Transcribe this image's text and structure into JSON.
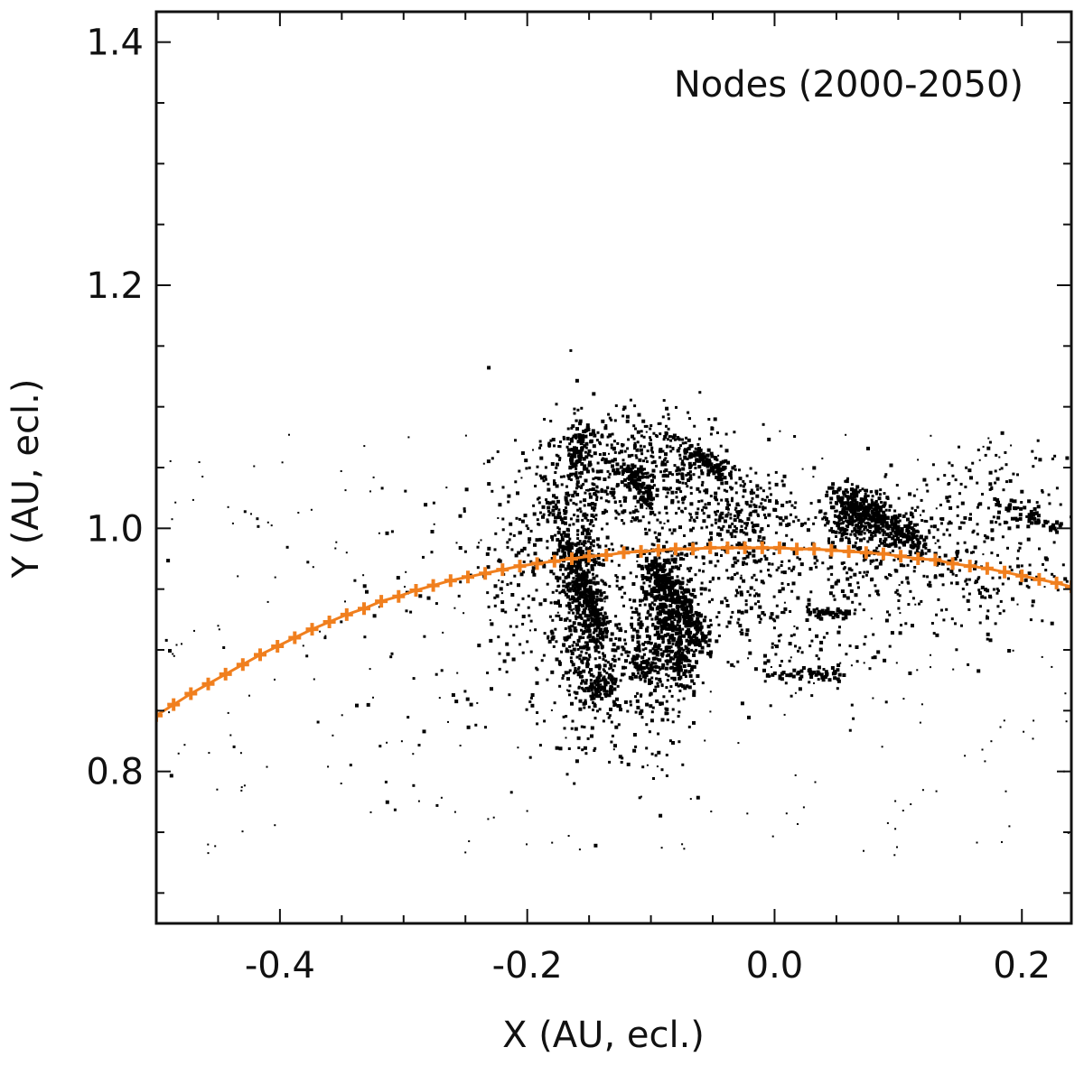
{
  "chart_data": {
    "type": "scatter",
    "title": "",
    "annotation": "Nodes (2000-2050)",
    "xlabel": "X (AU, ecl.)",
    "ylabel": "Y (AU, ecl.)",
    "xlim": [
      -0.5,
      0.24
    ],
    "ylim": [
      0.675,
      1.425
    ],
    "x_ticks": [
      -0.4,
      -0.2,
      0.0,
      0.2
    ],
    "x_tick_labels": [
      "-0.4",
      "-0.2",
      "0.0",
      "0.2"
    ],
    "x_minor_ticks": [
      -0.45,
      -0.35,
      -0.3,
      -0.25,
      -0.15,
      -0.1,
      -0.05,
      0.05,
      0.1,
      0.15
    ],
    "y_ticks": [
      0.8,
      1.0,
      1.2,
      1.4
    ],
    "y_tick_labels": [
      "0.8",
      "1.0",
      "1.2",
      "1.4"
    ],
    "y_minor_ticks": [
      0.7,
      0.75,
      0.85,
      0.9,
      0.95,
      1.05,
      1.1,
      1.15,
      1.25,
      1.3,
      1.35
    ],
    "grid": false,
    "orbit_color": "#f07f1e",
    "node_color": "#000000",
    "series": [
      {
        "kind": "line-with-plus-markers",
        "x": [
          -0.5,
          -0.486,
          -0.472,
          -0.458,
          -0.444,
          -0.43,
          -0.416,
          -0.402,
          -0.388,
          -0.374,
          -0.36,
          -0.346,
          -0.332,
          -0.318,
          -0.304,
          -0.29,
          -0.276,
          -0.262,
          -0.248,
          -0.234,
          -0.22,
          -0.206,
          -0.192,
          -0.178,
          -0.164,
          -0.15,
          -0.136,
          -0.122,
          -0.108,
          -0.094,
          -0.08,
          -0.066,
          -0.052,
          -0.038,
          -0.024,
          -0.01,
          0.004,
          0.018,
          0.032,
          0.046,
          0.06,
          0.074,
          0.088,
          0.102,
          0.116,
          0.13,
          0.144,
          0.158,
          0.172,
          0.186,
          0.2,
          0.214,
          0.228,
          0.24
        ],
        "y": [
          0.846,
          0.855,
          0.864,
          0.872,
          0.88,
          0.888,
          0.896,
          0.903,
          0.91,
          0.917,
          0.923,
          0.929,
          0.934,
          0.94,
          0.944,
          0.949,
          0.953,
          0.957,
          0.96,
          0.963,
          0.966,
          0.969,
          0.971,
          0.973,
          0.975,
          0.977,
          0.978,
          0.98,
          0.981,
          0.982,
          0.983,
          0.983,
          0.984,
          0.984,
          0.984,
          0.984,
          0.984,
          0.983,
          0.983,
          0.982,
          0.981,
          0.98,
          0.979,
          0.977,
          0.975,
          0.974,
          0.971,
          0.969,
          0.967,
          0.964,
          0.961,
          0.958,
          0.955,
          0.952
        ]
      }
    ],
    "node_clusters": [
      {
        "x": -0.155,
        "y": 0.94,
        "sx": 0.012,
        "sy": 0.05,
        "n": 420
      },
      {
        "x": -0.17,
        "y": 1.02,
        "sx": 0.02,
        "sy": 0.04,
        "n": 220
      },
      {
        "x": -0.09,
        "y": 0.925,
        "sx": 0.015,
        "sy": 0.05,
        "n": 450
      },
      {
        "x": -0.13,
        "y": 1.05,
        "sx": 0.02,
        "sy": 0.025,
        "n": 200
      },
      {
        "x": -0.08,
        "y": 1.055,
        "sx": 0.02,
        "sy": 0.02,
        "n": 200
      },
      {
        "x": -0.03,
        "y": 1.015,
        "sx": 0.025,
        "sy": 0.02,
        "n": 220
      },
      {
        "x": -0.02,
        "y": 0.96,
        "sx": 0.03,
        "sy": 0.035,
        "n": 200
      },
      {
        "x": 0.065,
        "y": 1.01,
        "sx": 0.012,
        "sy": 0.012,
        "n": 280
      },
      {
        "x": 0.1,
        "y": 0.99,
        "sx": 0.03,
        "sy": 0.02,
        "n": 200
      },
      {
        "x": 0.17,
        "y": 0.97,
        "sx": 0.04,
        "sy": 0.03,
        "n": 200
      },
      {
        "x": 0.04,
        "y": 0.93,
        "sx": 0.05,
        "sy": 0.04,
        "n": 180
      },
      {
        "x": -0.135,
        "y": 0.88,
        "sx": 0.02,
        "sy": 0.03,
        "n": 150
      },
      {
        "x": -0.14,
        "y": 0.872,
        "sx": 0.006,
        "sy": 0.008,
        "n": 90
      },
      {
        "x": -0.105,
        "y": 0.888,
        "sx": 0.006,
        "sy": 0.01,
        "n": 80
      },
      {
        "x": -0.2,
        "y": 0.95,
        "sx": 0.025,
        "sy": 0.06,
        "n": 160
      },
      {
        "x": 0.16,
        "y": 1.03,
        "sx": 0.04,
        "sy": 0.02,
        "n": 80
      },
      {
        "x": -0.25,
        "y": 0.92,
        "sx": 0.1,
        "sy": 0.07,
        "n": 120
      }
    ],
    "node_streaks": [
      {
        "x1": -0.17,
        "y1": 0.99,
        "x2": -0.14,
        "y2": 0.91,
        "w": 0.006,
        "n": 240
      },
      {
        "x1": -0.1,
        "y1": 0.975,
        "x2": -0.07,
        "y2": 0.875,
        "w": 0.006,
        "n": 260
      },
      {
        "x1": -0.085,
        "y1": 0.96,
        "x2": -0.055,
        "y2": 0.9,
        "w": 0.005,
        "n": 160
      },
      {
        "x1": -0.07,
        "y1": 1.065,
        "x2": -0.04,
        "y2": 1.045,
        "w": 0.004,
        "n": 90
      },
      {
        "x1": 0.05,
        "y1": 1.03,
        "x2": 0.12,
        "y2": 0.985,
        "w": 0.006,
        "n": 200
      },
      {
        "x1": 0.18,
        "y1": 1.02,
        "x2": 0.23,
        "y2": 1.0,
        "w": 0.004,
        "n": 60
      },
      {
        "x1": -0.155,
        "y1": 1.085,
        "x2": -0.16,
        "y2": 1.05,
        "w": 0.004,
        "n": 70
      },
      {
        "x1": -0.12,
        "y1": 1.05,
        "x2": -0.1,
        "y2": 1.02,
        "w": 0.004,
        "n": 80
      },
      {
        "x1": -0.01,
        "y1": 0.88,
        "x2": 0.06,
        "y2": 0.88,
        "w": 0.002,
        "n": 50
      },
      {
        "x1": 0.03,
        "y1": 0.93,
        "x2": 0.06,
        "y2": 0.93,
        "w": 0.002,
        "n": 40
      }
    ],
    "background_node_count": 260
  }
}
